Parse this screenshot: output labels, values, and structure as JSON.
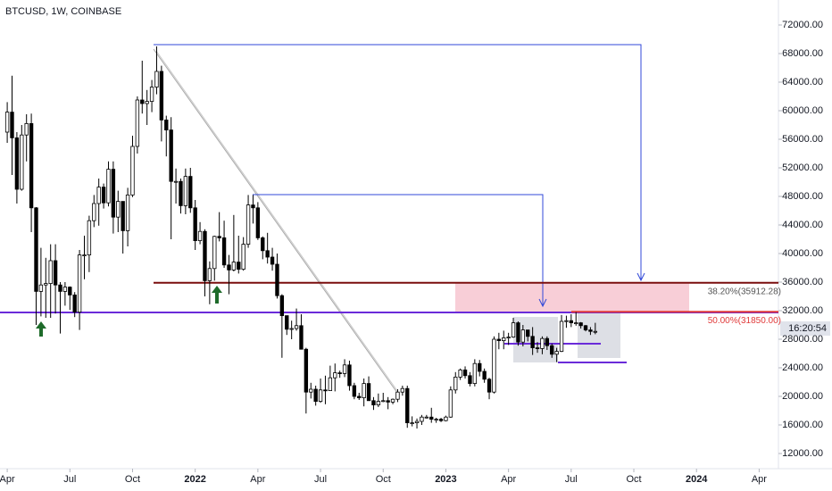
{
  "chart_data": {
    "type": "candlestick",
    "title": "BTCUSD, 1W, COINBASE",
    "open": [
      57000,
      59800,
      56200,
      49000,
      56600,
      58200,
      46400,
      34700,
      35600,
      35800,
      39000,
      35600,
      34700,
      35300,
      34200,
      31800,
      39800,
      39800,
      44600,
      47000,
      49300,
      47100,
      51800,
      45100,
      47300,
      43200,
      48200,
      55000,
      61500,
      61000,
      61300,
      63300,
      65500,
      58700,
      57300,
      50100,
      50100,
      46700,
      50800,
      46400,
      41800,
      43100,
      36200,
      37900,
      42400,
      42200,
      38400,
      37700,
      38800,
      37800,
      41300,
      46800,
      46400,
      42200,
      40400,
      39500,
      38500,
      34100,
      31300,
      29400,
      29500,
      29900,
      26600,
      20600,
      21000,
      19300,
      20900,
      20800,
      22600,
      23300,
      23200,
      24400,
      21500,
      20000,
      19800,
      21800,
      19400,
      18800,
      19300,
      19400,
      19200,
      19600,
      20600,
      21100,
      16300,
      16300,
      16500,
      17100,
      17100,
      16800,
      16800,
      16600,
      17100,
      20900,
      22700,
      23700,
      22900,
      21800,
      24600,
      23500,
      22400,
      20600,
      28000,
      27800,
      28200,
      28300,
      30300,
      27600,
      29300,
      28400,
      26800,
      26700,
      28100,
      27100,
      25900,
      26300,
      30500,
      30600,
      30300,
      30300,
      29900,
      29300,
      29100
    ],
    "high": [
      61200,
      64900,
      57000,
      58000,
      59500,
      59600,
      46500,
      40800,
      39400,
      41300,
      41300,
      36000,
      36000,
      35400,
      34600,
      40500,
      42500,
      45300,
      48200,
      50500,
      49800,
      52900,
      52900,
      48800,
      47300,
      49200,
      56500,
      62000,
      67000,
      62900,
      64300,
      69000,
      66300,
      59300,
      59100,
      51900,
      50500,
      51900,
      52000,
      47500,
      44400,
      43400,
      38900,
      42500,
      45800,
      44600,
      39800,
      45400,
      42500,
      42300,
      48200,
      48200,
      47200,
      42400,
      42900,
      40800,
      40000,
      34300,
      31300,
      30600,
      32300,
      31500,
      26800,
      21900,
      21500,
      22500,
      22900,
      24300,
      24600,
      23600,
      25200,
      25000,
      21900,
      20500,
      22500,
      22800,
      19900,
      20400,
      20500,
      19900,
      19700,
      21000,
      21500,
      21500,
      17200,
      16900,
      17400,
      17400,
      18400,
      17000,
      17000,
      17300,
      21400,
      23400,
      23900,
      24200,
      23400,
      25200,
      25100,
      23900,
      22600,
      28400,
      28900,
      29200,
      28900,
      31000,
      30500,
      30000,
      29300,
      29700,
      27600,
      28400,
      28400,
      27400,
      26800,
      31400,
      31300,
      31500,
      31800,
      30400,
      30000,
      29700,
      30300
    ],
    "low": [
      55500,
      51000,
      47000,
      48800,
      52900,
      43000,
      30000,
      31200,
      31000,
      31000,
      31600,
      28800,
      32700,
      32100,
      31100,
      29300,
      36400,
      37400,
      43700,
      43900,
      46300,
      46600,
      42800,
      43000,
      40000,
      41000,
      47900,
      54000,
      59600,
      58000,
      59800,
      62300,
      55700,
      53600,
      42000,
      47000,
      45600,
      45500,
      45700,
      40500,
      41300,
      34000,
      32900,
      36200,
      41700,
      38000,
      34300,
      37500,
      37200,
      37600,
      40800,
      44200,
      41900,
      39200,
      38600,
      37600,
      33700,
      25400,
      28600,
      28000,
      29200,
      26600,
      17600,
      19700,
      18700,
      19100,
      18900,
      20800,
      20700,
      22600,
      22700,
      20800,
      19600,
      19500,
      18600,
      19400,
      18100,
      18500,
      19200,
      18200,
      18900,
      19200,
      20100,
      15600,
      15800,
      15500,
      16000,
      16900,
      16300,
      16300,
      16400,
      16500,
      17000,
      20400,
      22300,
      22500,
      21400,
      21400,
      22800,
      21900,
      19600,
      20400,
      26600,
      26600,
      27200,
      28200,
      27100,
      27000,
      27700,
      25800,
      26100,
      25900,
      26500,
      25400,
      24800,
      26200,
      29600,
      29700,
      29900,
      29500,
      29100,
      28600,
      28700
    ],
    "close": [
      59800,
      56200,
      49000,
      56600,
      58200,
      46400,
      34700,
      35600,
      35800,
      39000,
      35600,
      34700,
      35300,
      34200,
      31800,
      39800,
      39800,
      44600,
      47000,
      49300,
      47100,
      51800,
      45100,
      47300,
      43200,
      48200,
      55000,
      61500,
      61000,
      61300,
      63300,
      65500,
      58700,
      57300,
      50100,
      50100,
      46700,
      50800,
      46400,
      41800,
      43100,
      36200,
      37900,
      42400,
      42200,
      38400,
      37700,
      38800,
      37800,
      41300,
      46800,
      46400,
      42200,
      40400,
      39500,
      38500,
      34100,
      31300,
      29400,
      29500,
      29900,
      26600,
      20600,
      21000,
      19300,
      20900,
      20800,
      22600,
      23300,
      23200,
      24400,
      21500,
      20000,
      19800,
      21800,
      19400,
      18800,
      19300,
      19400,
      19200,
      19600,
      20600,
      21100,
      16300,
      16300,
      16500,
      17100,
      17100,
      16800,
      16800,
      16600,
      17100,
      20900,
      22700,
      23700,
      22900,
      21800,
      24600,
      23500,
      22400,
      20600,
      28000,
      27800,
      28200,
      28300,
      30300,
      27600,
      29300,
      28400,
      26800,
      26700,
      28100,
      27100,
      25900,
      26300,
      30500,
      30600,
      30300,
      30300,
      29900,
      29300,
      29100,
      29100
    ],
    "up_color": "#ffffff",
    "down_color": "#000000",
    "xlim": [
      -1.5,
      160
    ],
    "xticks": [
      {
        "value": 0,
        "label": "Apr"
      },
      {
        "value": 13,
        "label": "Jul"
      },
      {
        "value": 26,
        "label": "Oct"
      },
      {
        "value": 39,
        "label": "2022"
      },
      {
        "value": 52,
        "label": "Apr"
      },
      {
        "value": 65,
        "label": "Jul"
      },
      {
        "value": 78,
        "label": "Oct"
      },
      {
        "value": 91,
        "label": "2023"
      },
      {
        "value": 104,
        "label": "Apr"
      },
      {
        "value": 117,
        "label": "Jul"
      },
      {
        "value": 130,
        "label": "Oct"
      },
      {
        "value": 143,
        "label": "2024"
      },
      {
        "value": 156,
        "label": "Apr"
      }
    ],
    "ylim": [
      9875,
      75500
    ],
    "yticks": [
      {
        "value": 72000,
        "label": "72000.00"
      },
      {
        "value": 68000,
        "label": "68000.00"
      },
      {
        "value": 64000,
        "label": "64000.00"
      },
      {
        "value": 60000,
        "label": "60000.00"
      },
      {
        "value": 56000,
        "label": "56000.00"
      },
      {
        "value": 52000,
        "label": "52000.00"
      },
      {
        "value": 48000,
        "label": "48000.00"
      },
      {
        "value": 44000,
        "label": "44000.00"
      },
      {
        "value": 40000,
        "label": "40000.00"
      },
      {
        "value": 36000,
        "label": "36000.00"
      },
      {
        "value": 32000,
        "label": "32000.00"
      },
      {
        "value": 28000,
        "label": "28000.00"
      },
      {
        "value": 24000,
        "label": "24000.00"
      },
      {
        "value": 20000,
        "label": "20000.00"
      },
      {
        "value": 16000,
        "label": "16000.00"
      },
      {
        "value": 12000,
        "label": "12000.00"
      }
    ],
    "fib_levels": [
      {
        "value": 35912.28,
        "label": "38.20%(35912.28)",
        "color": "#7a0e0e",
        "label_color": "#555555"
      },
      {
        "value": 31850,
        "label": "50.00%(31850.00)",
        "color": "#e03a3a",
        "label_color": "#e03a3a"
      }
    ],
    "countdown": "16:20:54"
  }
}
